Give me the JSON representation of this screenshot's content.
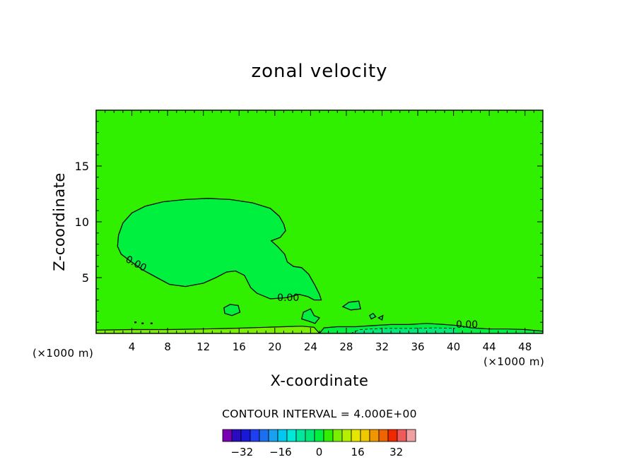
{
  "chart_data": {
    "type": "heatmap",
    "title": "zonal velocity",
    "xlabel": "X-coordinate",
    "ylabel": "Z-coordinate",
    "x_unit_label": "(×1000 m)",
    "xlim": [
      0,
      50
    ],
    "ylim": [
      0,
      20
    ],
    "x_ticks": [
      "4",
      "8",
      "12",
      "16",
      "20",
      "24",
      "28",
      "32",
      "36",
      "40",
      "44",
      "48"
    ],
    "y_ticks": [
      "5",
      "10",
      "15"
    ],
    "contour_labels": [
      "0.00",
      "0.00",
      "0.00"
    ],
    "contour_interval_text": "CONTOUR INTERVAL = 4.000E+00",
    "contour_interval": 4,
    "colorbar": {
      "levels": [
        -40,
        -36,
        -32,
        -28,
        -24,
        -20,
        -16,
        -12,
        -8,
        -4,
        0,
        4,
        8,
        12,
        16,
        20,
        24,
        28,
        32,
        36,
        40
      ],
      "tick_labels": [
        "-32",
        "-16",
        "0",
        "16",
        "32"
      ],
      "colors": [
        "#7a00b4",
        "#2a0cc0",
        "#1818d8",
        "#1e40f0",
        "#1a70f0",
        "#1aa0f0",
        "#00c8f0",
        "#00e8d8",
        "#00e8a0",
        "#00e878",
        "#00f040",
        "#30f000",
        "#7af000",
        "#b4f000",
        "#e6e600",
        "#f0c800",
        "#f09600",
        "#f06400",
        "#f02800",
        "#f05a5a",
        "#f0a0a0"
      ]
    },
    "background_color": "#30f000",
    "regions": [
      {
        "value_range": "0 to -4",
        "color": "#00f040",
        "description": "main negative cell"
      },
      {
        "value_range": "0 to 4",
        "color": "#7af000",
        "description": "near-surface positive band"
      },
      {
        "value_range": "-4 to -8",
        "color": "#00e878",
        "description": "near-surface negative band"
      }
    ]
  }
}
